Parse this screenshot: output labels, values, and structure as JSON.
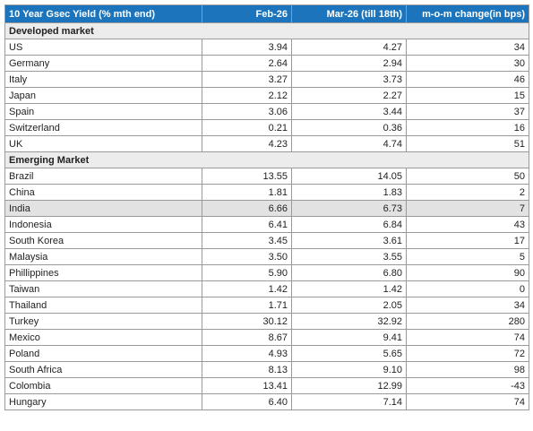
{
  "table": {
    "header": [
      "10 Year Gsec Yield (% mth end)",
      "Feb-26",
      "Mar-26 (till 18th)",
      "m-o-m change(in bps)"
    ],
    "sections": [
      {
        "title": "Developed market",
        "rows": [
          {
            "cells": [
              "US",
              "3.94",
              "4.27",
              "34"
            ]
          },
          {
            "cells": [
              "Germany",
              "2.64",
              "2.94",
              "30"
            ]
          },
          {
            "cells": [
              "Italy",
              "3.27",
              "3.73",
              "46"
            ]
          },
          {
            "cells": [
              "Japan",
              "2.12",
              "2.27",
              "15"
            ]
          },
          {
            "cells": [
              "Spain",
              "3.06",
              "3.44",
              "37"
            ]
          },
          {
            "cells": [
              "Switzerland",
              "0.21",
              "0.36",
              "16"
            ]
          },
          {
            "cells": [
              "UK",
              "4.23",
              "4.74",
              "51"
            ]
          }
        ]
      },
      {
        "title": "Emerging Market",
        "rows": [
          {
            "cells": [
              "Brazil",
              "13.55",
              "14.05",
              "50"
            ]
          },
          {
            "cells": [
              "China",
              "1.81",
              "1.83",
              "2"
            ]
          },
          {
            "cells": [
              "India",
              "6.66",
              "6.73",
              "7"
            ],
            "highlight": true
          },
          {
            "cells": [
              "Indonesia",
              "6.41",
              "6.84",
              "43"
            ]
          },
          {
            "cells": [
              "South Korea",
              "3.45",
              "3.61",
              "17"
            ]
          },
          {
            "cells": [
              "Malaysia",
              "3.50",
              "3.55",
              "5"
            ]
          },
          {
            "cells": [
              "Phillippines",
              "5.90",
              "6.80",
              "90"
            ]
          },
          {
            "cells": [
              "Taiwan",
              "1.42",
              "1.42",
              "0"
            ]
          },
          {
            "cells": [
              "Thailand",
              "1.71",
              "2.05",
              "34"
            ]
          },
          {
            "cells": [
              "Turkey",
              "30.12",
              "32.92",
              "280"
            ]
          },
          {
            "cells": [
              "Mexico",
              "8.67",
              "9.41",
              "74"
            ]
          },
          {
            "cells": [
              "Poland",
              "4.93",
              "5.65",
              "72"
            ]
          },
          {
            "cells": [
              "South Africa",
              "8.13",
              "9.10",
              "98"
            ]
          },
          {
            "cells": [
              "Colombia",
              "13.41",
              "12.99",
              "-43"
            ]
          },
          {
            "cells": [
              "Hungary",
              "6.40",
              "7.14",
              "74"
            ]
          }
        ]
      }
    ]
  }
}
